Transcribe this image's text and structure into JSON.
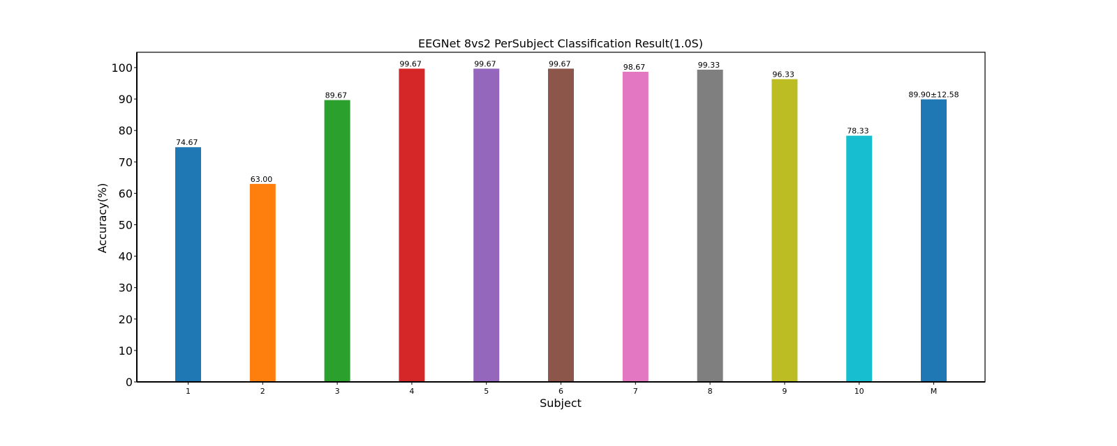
{
  "chart_data": {
    "type": "bar",
    "title": "EEGNet 8vs2 PerSubject Classification Result(1.0S)",
    "xlabel": "Subject",
    "ylabel": "Accuracy(%)",
    "ylim": [
      0,
      100
    ],
    "yticks": [
      0,
      10,
      20,
      30,
      40,
      50,
      60,
      70,
      80,
      90,
      100
    ],
    "categories": [
      "1",
      "2",
      "3",
      "4",
      "5",
      "6",
      "7",
      "8",
      "9",
      "10",
      "M"
    ],
    "values": [
      74.67,
      63.0,
      89.67,
      99.67,
      99.67,
      99.67,
      98.67,
      99.33,
      96.33,
      78.33,
      89.9
    ],
    "value_labels": [
      "74.67",
      "63.00",
      "89.67",
      "99.67",
      "99.67",
      "99.67",
      "98.67",
      "99.33",
      "96.33",
      "78.33",
      "89.90±12.58"
    ],
    "colors": [
      "#1f77b4",
      "#ff7f0e",
      "#2ca02c",
      "#d62728",
      "#9467bd",
      "#8c564b",
      "#e377c2",
      "#7f7f7f",
      "#bcbd22",
      "#17becf",
      "#1f77b4"
    ],
    "label_colors": [
      "#000000",
      "#000000",
      "#000000",
      "#000000",
      "#000000",
      "#000000",
      "#000000",
      "#000000",
      "#000000",
      "#000000",
      "#ff0000"
    ],
    "grid": false,
    "legend": "none"
  }
}
